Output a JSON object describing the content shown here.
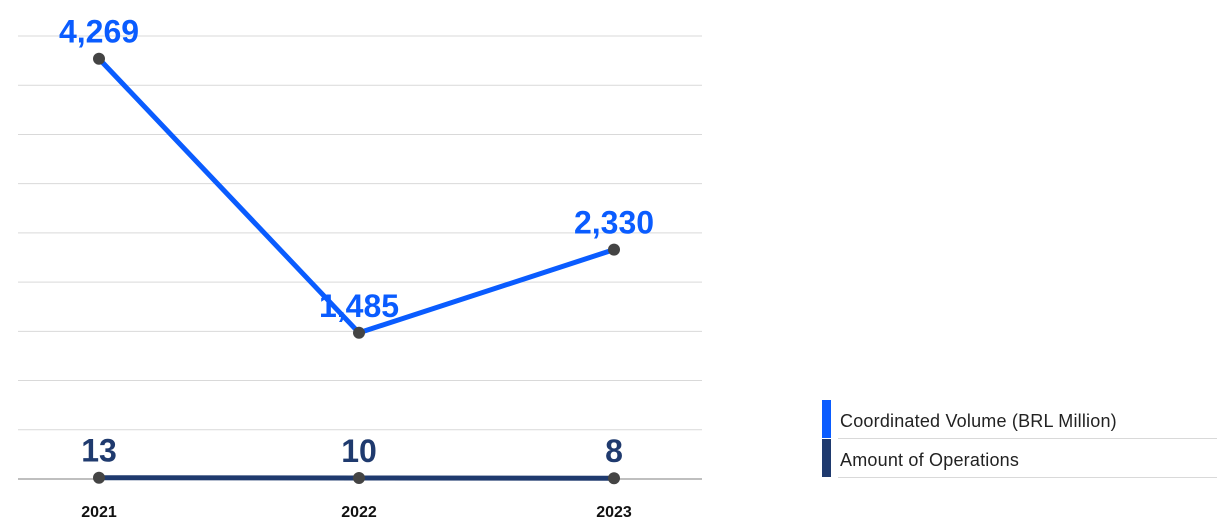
{
  "chart_data": {
    "type": "line",
    "categories": [
      "2021",
      "2022",
      "2023"
    ],
    "series": [
      {
        "name": "Coordinated Volume (BRL Million)",
        "values": [
          4269,
          1485,
          2330
        ],
        "labels": [
          "4,269",
          "1,485",
          "2,330"
        ],
        "color": "#0a5cff"
      },
      {
        "name": "Amount of Operations",
        "values": [
          13,
          10,
          8
        ],
        "labels": [
          "13",
          "10",
          "8"
        ],
        "color": "#1f3a6e"
      }
    ],
    "ylim": [
      0,
      4500
    ],
    "grid": true,
    "legend_position": "bottom-right",
    "marker_color": "#444444",
    "title": "",
    "xlabel": "",
    "ylabel": ""
  },
  "legend": {
    "items": [
      {
        "label": "Coordinated Volume (BRL Million)",
        "color": "#0a5cff"
      },
      {
        "label": "Amount of Operations",
        "color": "#1f3a6e"
      }
    ]
  }
}
